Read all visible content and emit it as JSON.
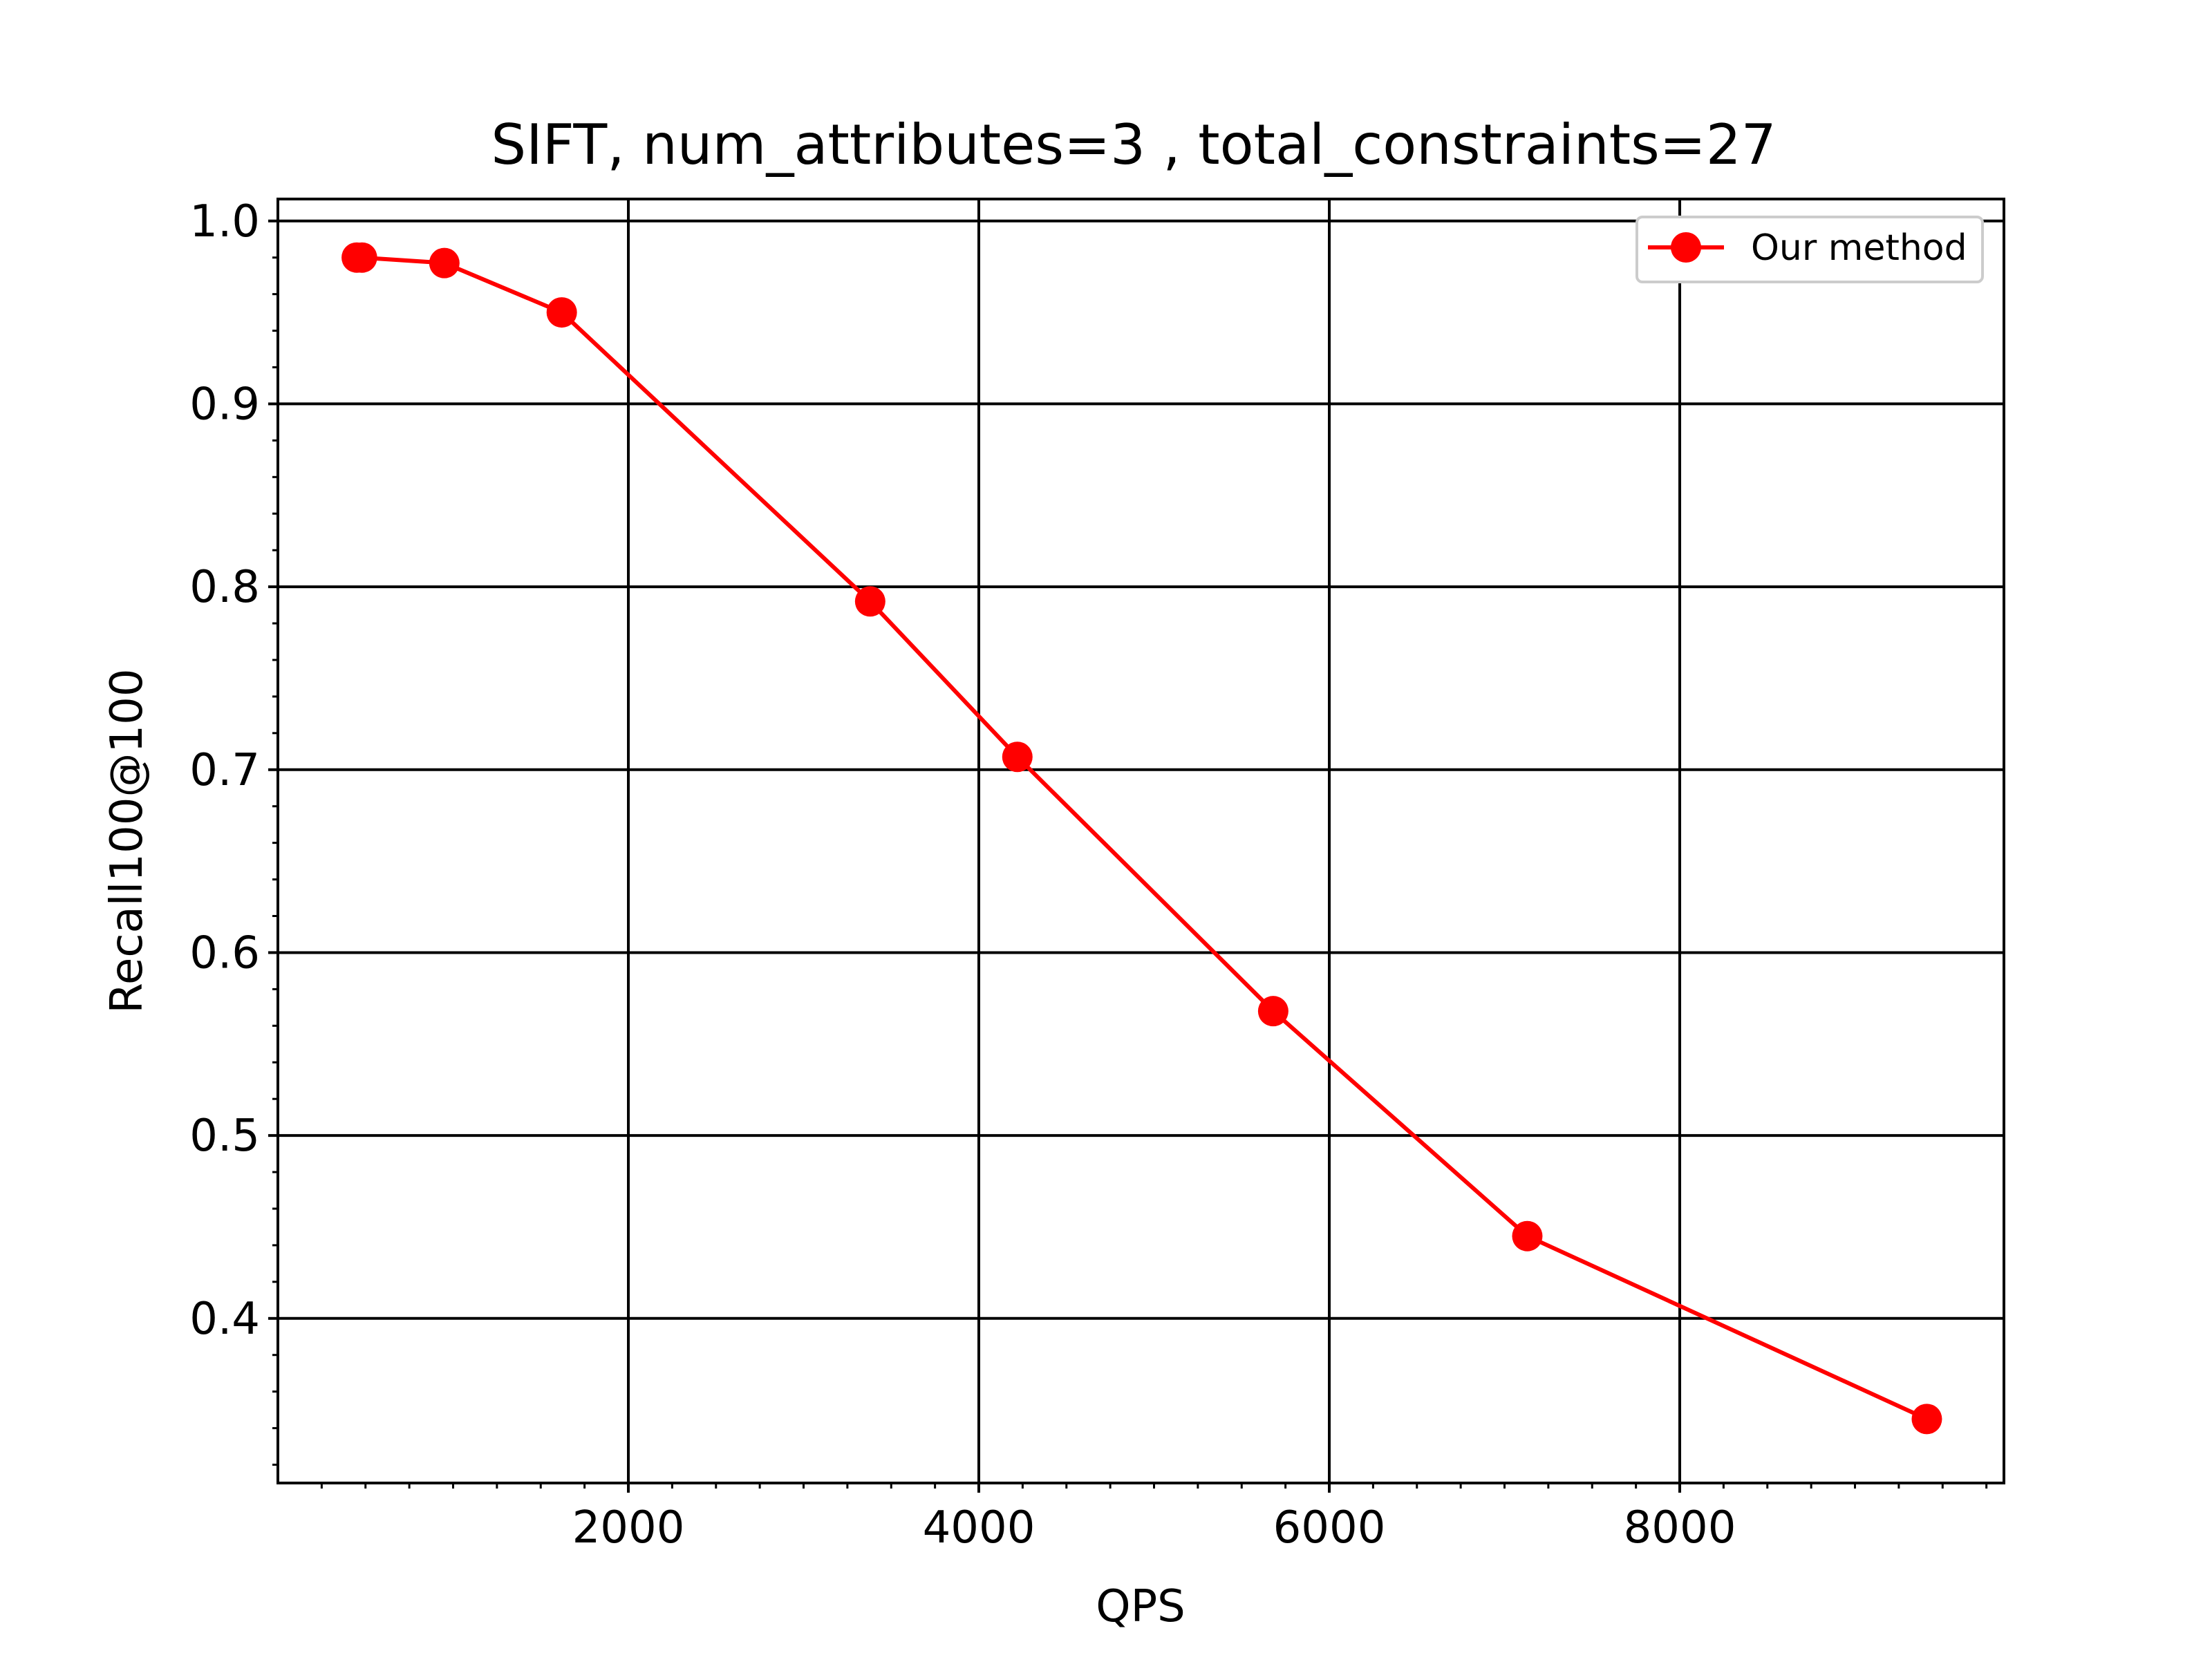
{
  "chart_data": {
    "type": "line",
    "title": "SIFT, num_attributes=3 , total_constraints=27",
    "xlabel": "QPS",
    "ylabel": "Recall100@100",
    "xlim": [
      0,
      9850
    ],
    "ylim": [
      0.31,
      1.012
    ],
    "x_ticks": [
      2000,
      4000,
      6000,
      8000
    ],
    "x_tick_labels": [
      "2000",
      "4000",
      "6000",
      "8000"
    ],
    "y_ticks": [
      0.4,
      0.5,
      0.6,
      0.7,
      0.8,
      0.9,
      1.0
    ],
    "y_tick_labels": [
      "0.4",
      "0.5",
      "0.6",
      "0.7",
      "0.8",
      "0.9",
      "1.0"
    ],
    "x_minor_step": 250,
    "y_minor_step": 0.02,
    "grid": true,
    "legend_position": "top-right",
    "series": [
      {
        "name": "Our method",
        "color": "#ff0000",
        "marker": "circle",
        "points": [
          {
            "x": 450,
            "y": 0.98
          },
          {
            "x": 480,
            "y": 0.98
          },
          {
            "x": 950,
            "y": 0.977
          },
          {
            "x": 1620,
            "y": 0.95
          },
          {
            "x": 3380,
            "y": 0.792
          },
          {
            "x": 4220,
            "y": 0.707
          },
          {
            "x": 5680,
            "y": 0.568
          },
          {
            "x": 7130,
            "y": 0.445
          },
          {
            "x": 9410,
            "y": 0.345
          }
        ]
      }
    ]
  }
}
